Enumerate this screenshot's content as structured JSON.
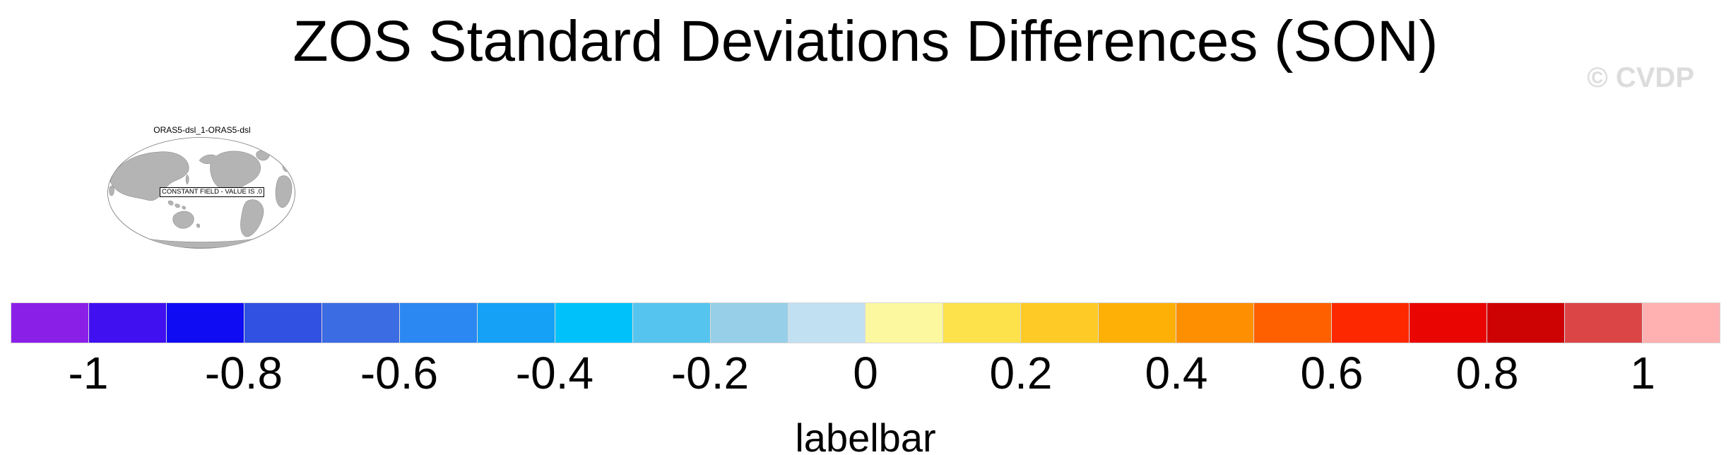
{
  "header": {
    "title": "ZOS Standard Deviations Differences (SON)",
    "watermark": "© CVDP"
  },
  "map_panel": {
    "title": "ORAS5-dsl_1-ORAS5-dsl",
    "overlay_label": "CONSTANT FIELD - VALUE IS .0",
    "land_color": "#b4b4b4",
    "outline_color": "#777777"
  },
  "colorbar": {
    "caption": "labelbar",
    "tick_labels": [
      "-1",
      "-0.8",
      "-0.6",
      "-0.4",
      "-0.2",
      "0",
      "0.2",
      "0.4",
      "0.6",
      "0.8",
      "1"
    ],
    "colors": [
      "#8a20e8",
      "#4110f0",
      "#0f0cf3",
      "#3051e2",
      "#3c6ce4",
      "#2b87f2",
      "#14a1f6",
      "#00c1fa",
      "#55c5ef",
      "#97cfe8",
      "#c1e1f3",
      "#fcf8a0",
      "#fee24c",
      "#fecb26",
      "#feb007",
      "#fe8f01",
      "#fe6000",
      "#fe2800",
      "#e90502",
      "#cd0202",
      "#dc4546",
      "#ffb0b0"
    ],
    "divider_color": "#d8d8d8"
  },
  "chart_data": {
    "type": "heatmap",
    "title": "ZOS Standard Deviations Differences (SON)",
    "panel_label": "ORAS5-dsl_1-ORAS5-dsl",
    "annotation": "CONSTANT FIELD - VALUE IS .0",
    "field_constant_value": 0,
    "projection": "global oval (Pacific-centered)",
    "colorbar": {
      "caption": "labelbar",
      "position": "bottom",
      "n_boxes": 22,
      "ticks": [
        -1,
        -0.8,
        -0.6,
        -0.4,
        -0.2,
        0,
        0.2,
        0.4,
        0.6,
        0.8,
        1
      ],
      "box_colors": [
        "#8a20e8",
        "#4110f0",
        "#0f0cf3",
        "#3051e2",
        "#3c6ce4",
        "#2b87f2",
        "#14a1f6",
        "#00c1fa",
        "#55c5ef",
        "#97cfe8",
        "#c1e1f3",
        "#fcf8a0",
        "#fee24c",
        "#fecb26",
        "#feb007",
        "#fe8f01",
        "#fe6000",
        "#fe2800",
        "#e90502",
        "#cd0202",
        "#dc4546",
        "#ffb0b0"
      ]
    }
  }
}
